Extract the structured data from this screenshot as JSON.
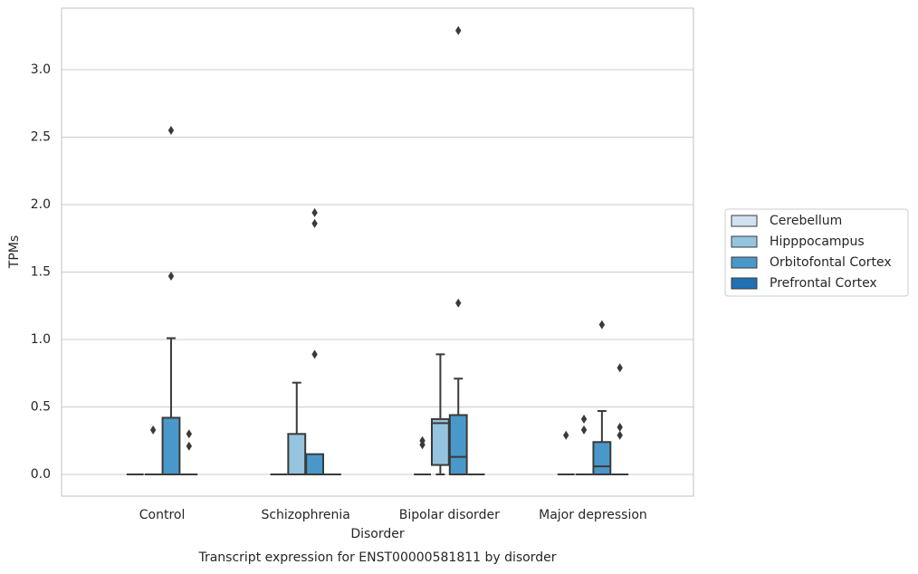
{
  "chart_data": {
    "type": "box",
    "caption": "Transcript expression for ENST00000581811 by disorder",
    "x_label": "Disorder",
    "y_label": "TPMs",
    "categories": [
      "Control",
      "Schizophrenia",
      "Bipolar disorder",
      "Major depression"
    ],
    "ylim": [
      -0.161,
      3.456
    ],
    "yticks": [
      {
        "value": 0,
        "label": "0.0"
      },
      0.5,
      {
        "value": 1,
        "label": "1.0"
      },
      1.5,
      {
        "value": 2,
        "label": "2.0"
      },
      2.5,
      {
        "value": 3,
        "label": "3.0"
      }
    ],
    "grid": true,
    "legend": "right",
    "series": [
      {
        "name": "Cerebellum",
        "color": "#d0e1f2",
        "boxes": [
          {
            "whislo": 0,
            "q1": 0,
            "median": 0,
            "q3": 0,
            "whishi": 0,
            "fliers": []
          },
          {
            "whislo": 0,
            "q1": 0,
            "median": 0,
            "q3": 0,
            "whishi": 0,
            "fliers": []
          },
          {
            "whislo": 0,
            "q1": 0,
            "median": 0,
            "q3": 0,
            "whishi": 0,
            "fliers": [
              0.22,
              0.25
            ]
          },
          {
            "whislo": 0,
            "q1": 0,
            "median": 0,
            "q3": 0,
            "whishi": 0,
            "fliers": [
              0.29
            ]
          }
        ]
      },
      {
        "name": "Hipppocampus",
        "color": "#94c4df",
        "boxes": [
          {
            "whislo": 0,
            "q1": 0,
            "median": 0,
            "q3": 0,
            "whishi": 0,
            "fliers": [
              0.33
            ]
          },
          {
            "whislo": 0,
            "q1": 0,
            "median": 0,
            "q3": 0.3,
            "whishi": 0.68,
            "fliers": []
          },
          {
            "whislo": 0,
            "q1": 0.07,
            "median": 0.38,
            "q3": 0.41,
            "whishi": 0.89,
            "fliers": []
          },
          {
            "whislo": 0,
            "q1": 0,
            "median": 0,
            "q3": 0,
            "whishi": 0,
            "fliers": [
              0.33,
              0.41
            ]
          }
        ]
      },
      {
        "name": "Orbitofontal Cortex",
        "color": "#4a98c9",
        "boxes": [
          {
            "whislo": 0,
            "q1": 0,
            "median": 0,
            "q3": 0.42,
            "whishi": 1.01,
            "fliers": [
              1.47,
              2.55
            ]
          },
          {
            "whislo": 0,
            "q1": 0,
            "median": 0,
            "q3": 0.15,
            "whishi": 0.15,
            "fliers": [
              0.89,
              1.86,
              1.94
            ]
          },
          {
            "whislo": 0,
            "q1": 0,
            "median": 0.13,
            "q3": 0.44,
            "whishi": 0.71,
            "fliers": [
              1.27,
              3.29
            ]
          },
          {
            "whislo": 0,
            "q1": 0,
            "median": 0.06,
            "q3": 0.24,
            "whishi": 0.47,
            "fliers": [
              1.11
            ]
          }
        ]
      },
      {
        "name": "Prefrontal Cortex",
        "color": "#2070b4",
        "boxes": [
          {
            "whislo": 0,
            "q1": 0,
            "median": 0,
            "q3": 0,
            "whishi": 0,
            "fliers": [
              0.21,
              0.3
            ]
          },
          {
            "whislo": 0,
            "q1": 0,
            "median": 0,
            "q3": 0,
            "whishi": 0,
            "fliers": []
          },
          {
            "whislo": 0,
            "q1": 0,
            "median": 0,
            "q3": 0,
            "whishi": 0,
            "fliers": []
          },
          {
            "whislo": 0,
            "q1": 0,
            "median": 0,
            "q3": 0,
            "whishi": 0,
            "fliers": [
              0.29,
              0.35,
              0.79
            ]
          }
        ]
      }
    ]
  }
}
